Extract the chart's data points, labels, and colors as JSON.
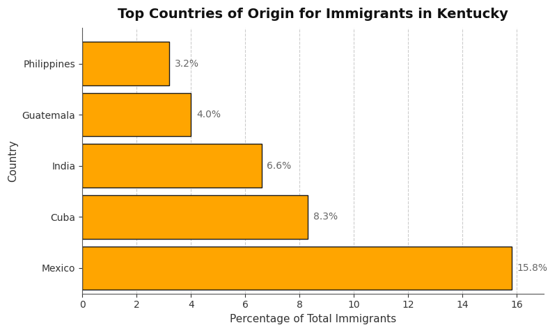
{
  "title": "Top Countries of Origin for Immigrants in Kentucky",
  "xlabel": "Percentage of Total Immigrants",
  "ylabel": "Country",
  "categories": [
    "Mexico",
    "Cuba",
    "India",
    "Guatemala",
    "Philippines"
  ],
  "values": [
    15.8,
    8.3,
    6.6,
    4.0,
    3.2
  ],
  "labels": [
    "15.8%",
    "8.3%",
    "6.6%",
    "4.0%",
    "3.2%"
  ],
  "bar_color": "#FFA500",
  "bar_edgecolor": "#1a1a1a",
  "background_color": "#ffffff",
  "grid_color": "#cccccc",
  "title_fontsize": 14,
  "axis_label_fontsize": 11,
  "tick_fontsize": 10,
  "label_fontsize": 10,
  "xlim": [
    0,
    17
  ],
  "xticks": [
    0,
    2,
    4,
    6,
    8,
    10,
    12,
    14,
    16
  ]
}
